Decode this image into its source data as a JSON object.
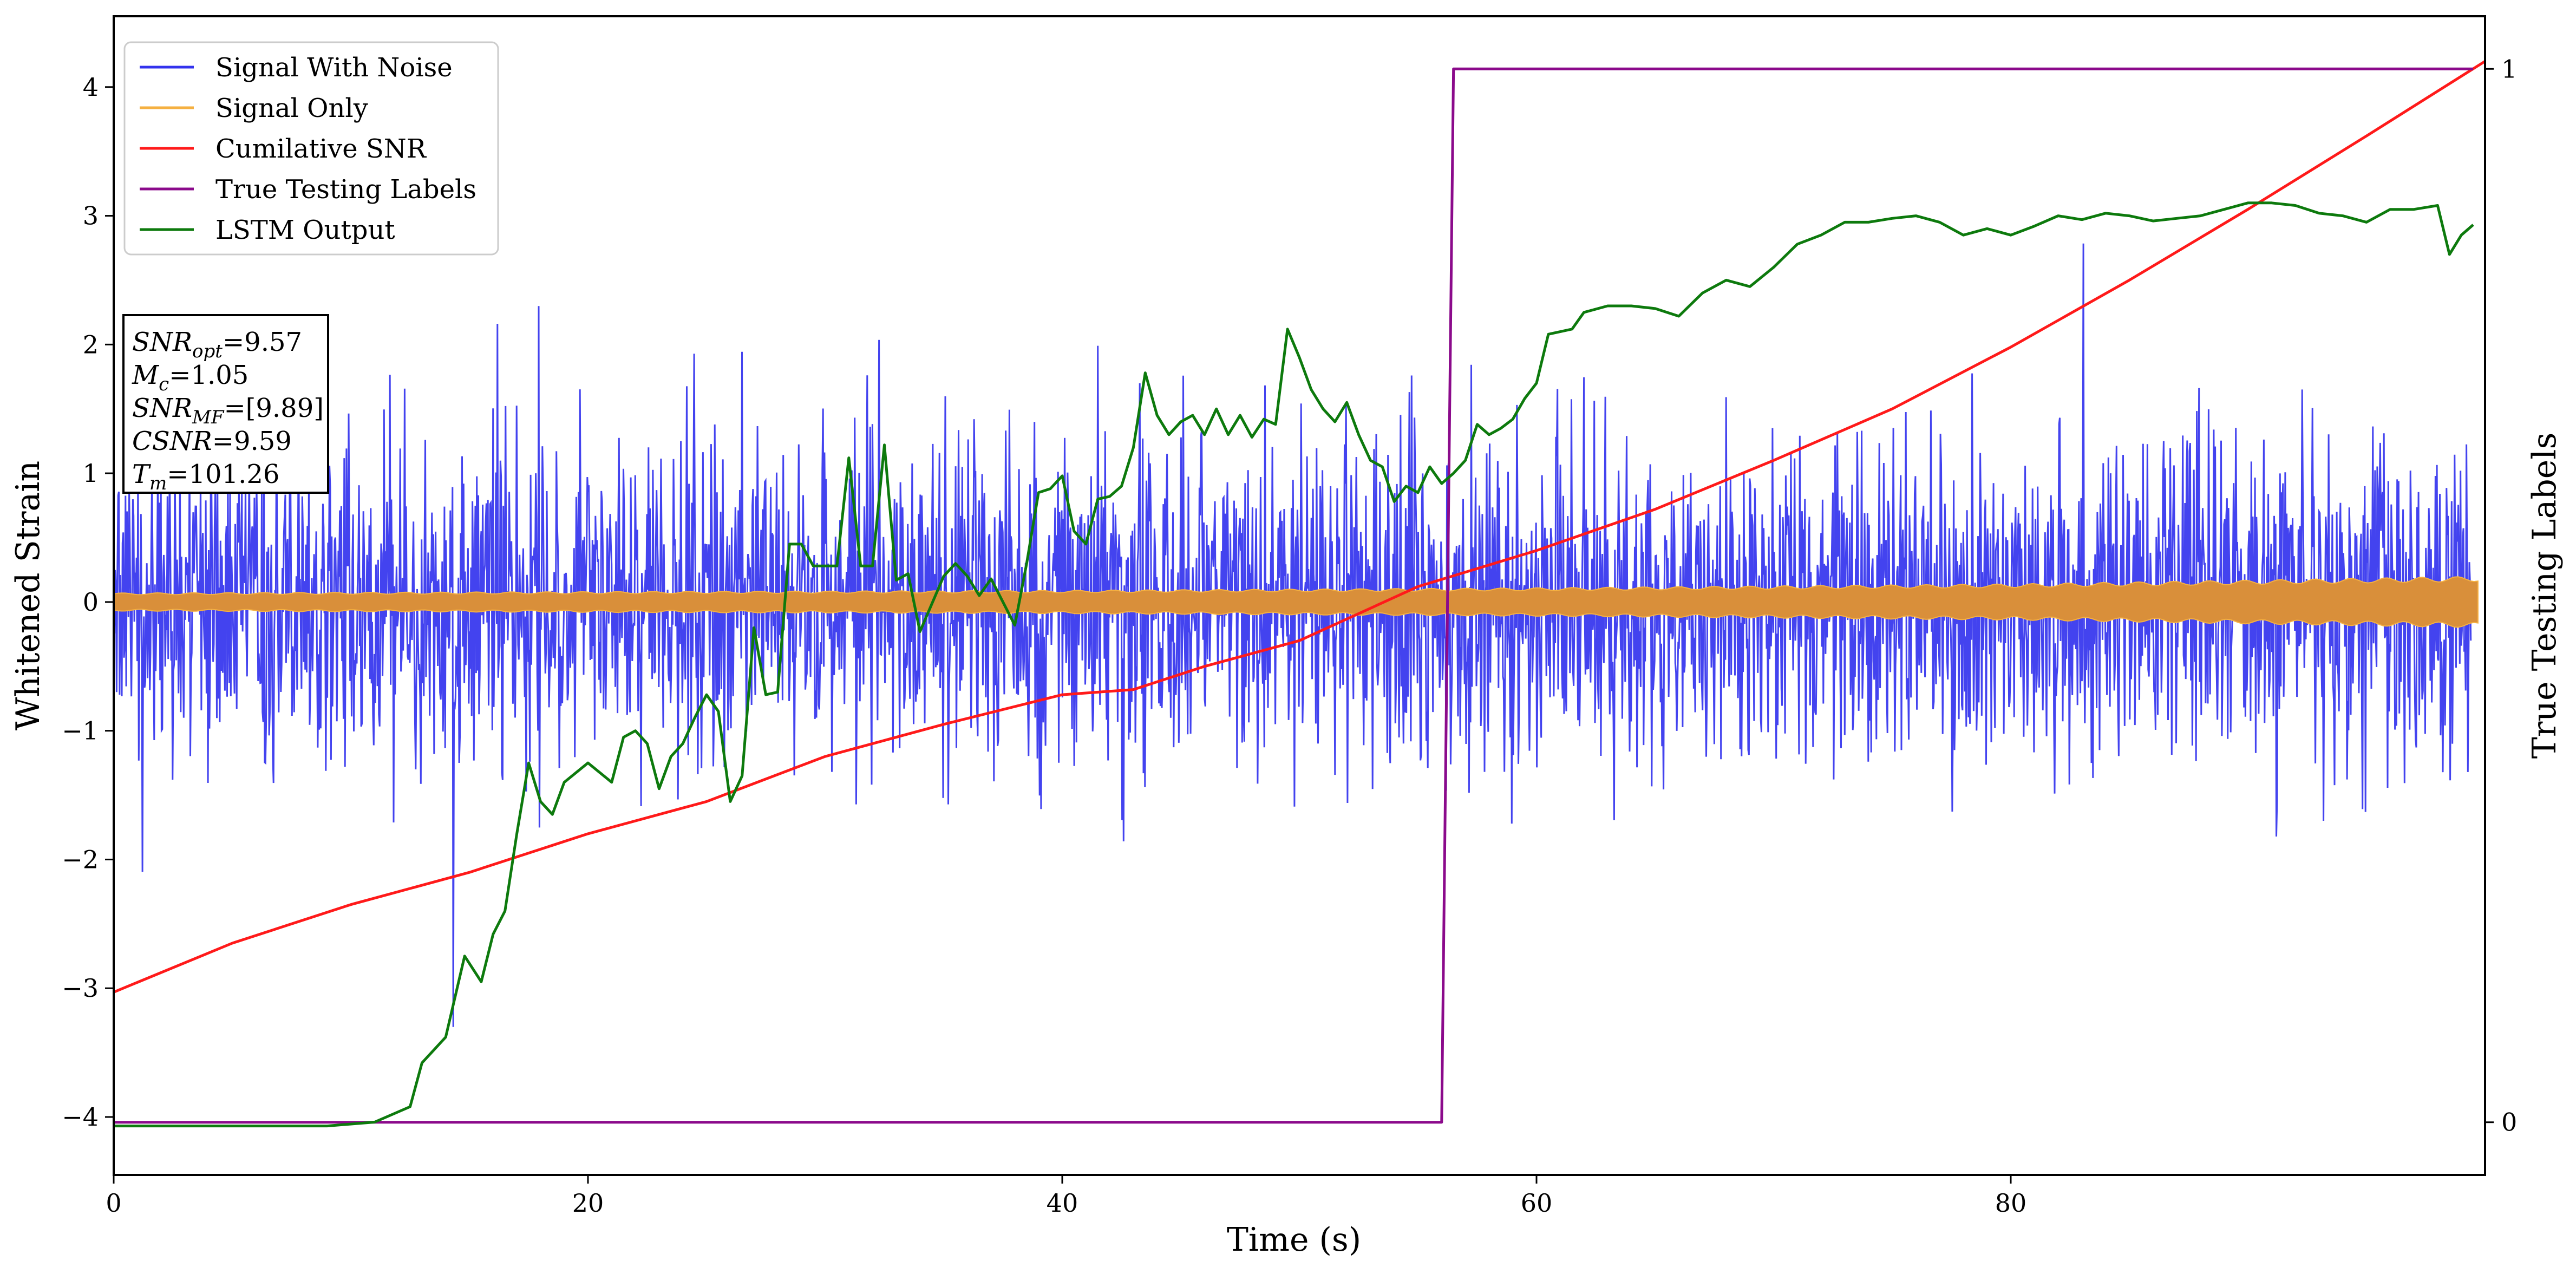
{
  "chart_data": {
    "type": "line",
    "xlabel": "Time (s)",
    "ylabel": "Whitened Strain",
    "ylabel_right": "True Testing Labels",
    "xlim": [
      0,
      100
    ],
    "ylim": [
      -4.45,
      4.55
    ],
    "ylim_right": [
      -0.05,
      1.05
    ],
    "x_ticks": [
      0,
      20,
      40,
      60,
      80
    ],
    "y_ticks": [
      -4,
      -3,
      -2,
      -1,
      0,
      1,
      2,
      3,
      4
    ],
    "y_ticks_right": [
      0,
      1
    ],
    "legend_position": "top-left",
    "series": [
      {
        "name": "Signal With Noise",
        "color": "#3333ee",
        "axis": "left",
        "description_only": true
      },
      {
        "name": "Signal Only",
        "color": "#f5b041",
        "axis": "left",
        "envelope": [
          [
            0,
            0.07
          ],
          [
            20,
            0.08
          ],
          [
            40,
            0.09
          ],
          [
            60,
            0.11
          ],
          [
            80,
            0.14
          ],
          [
            100,
            0.2
          ]
        ]
      },
      {
        "name": "Cumilative SNR",
        "color": "#ff1a1a",
        "axis": "left",
        "points": [
          [
            0,
            -3.03
          ],
          [
            5,
            -2.65
          ],
          [
            10,
            -2.35
          ],
          [
            15,
            -2.1
          ],
          [
            20,
            -1.8
          ],
          [
            25,
            -1.55
          ],
          [
            30,
            -1.2
          ],
          [
            35,
            -0.95
          ],
          [
            40,
            -0.72
          ],
          [
            43,
            -0.68
          ],
          [
            46,
            -0.5
          ],
          [
            50,
            -0.3
          ],
          [
            55,
            0.12
          ],
          [
            60,
            0.4
          ],
          [
            65,
            0.72
          ],
          [
            70,
            1.1
          ],
          [
            75,
            1.5
          ],
          [
            80,
            1.98
          ],
          [
            85,
            2.5
          ],
          [
            90,
            3.05
          ],
          [
            95,
            3.62
          ],
          [
            100,
            4.2
          ]
        ]
      },
      {
        "name": "True Testing Labels",
        "color": "#8b0a8b",
        "axis": "right",
        "points": [
          [
            0,
            0
          ],
          [
            56.0,
            0
          ],
          [
            56.5,
            1
          ],
          [
            99.5,
            1
          ]
        ]
      },
      {
        "name": "LSTM Output",
        "color": "#0d7a0d",
        "axis": "left",
        "points": [
          [
            0,
            -4.07
          ],
          [
            9,
            -4.07
          ],
          [
            11,
            -4.04
          ],
          [
            12.5,
            -3.92
          ],
          [
            13,
            -3.58
          ],
          [
            14,
            -3.38
          ],
          [
            14.8,
            -2.75
          ],
          [
            15.5,
            -2.95
          ],
          [
            16,
            -2.58
          ],
          [
            16.5,
            -2.4
          ],
          [
            17,
            -1.8
          ],
          [
            17.5,
            -1.25
          ],
          [
            18,
            -1.55
          ],
          [
            18.5,
            -1.65
          ],
          [
            19,
            -1.4
          ],
          [
            20,
            -1.25
          ],
          [
            21,
            -1.4
          ],
          [
            21.5,
            -1.05
          ],
          [
            22,
            -1.0
          ],
          [
            22.5,
            -1.1
          ],
          [
            23,
            -1.45
          ],
          [
            23.5,
            -1.2
          ],
          [
            24,
            -1.1
          ],
          [
            24.5,
            -0.9
          ],
          [
            25,
            -0.72
          ],
          [
            25.5,
            -0.85
          ],
          [
            26,
            -1.55
          ],
          [
            26.5,
            -1.35
          ],
          [
            27,
            -0.2
          ],
          [
            27.5,
            -0.72
          ],
          [
            28,
            -0.7
          ],
          [
            28.5,
            0.45
          ],
          [
            29,
            0.45
          ],
          [
            29.5,
            0.28
          ],
          [
            30,
            0.28
          ],
          [
            30.5,
            0.28
          ],
          [
            31,
            1.12
          ],
          [
            31.5,
            0.28
          ],
          [
            32,
            0.28
          ],
          [
            32.5,
            1.22
          ],
          [
            33,
            0.17
          ],
          [
            33.5,
            0.22
          ],
          [
            34,
            -0.23
          ],
          [
            35,
            0.2
          ],
          [
            35.5,
            0.3
          ],
          [
            36,
            0.2
          ],
          [
            36.5,
            0.05
          ],
          [
            37,
            0.18
          ],
          [
            38,
            -0.18
          ],
          [
            38.5,
            0.3
          ],
          [
            39,
            0.85
          ],
          [
            39.5,
            0.88
          ],
          [
            40,
            0.98
          ],
          [
            40.5,
            0.55
          ],
          [
            41,
            0.45
          ],
          [
            41.5,
            0.8
          ],
          [
            42,
            0.82
          ],
          [
            42.5,
            0.9
          ],
          [
            43,
            1.2
          ],
          [
            43.5,
            1.78
          ],
          [
            44,
            1.45
          ],
          [
            44.5,
            1.3
          ],
          [
            45,
            1.4
          ],
          [
            45.5,
            1.45
          ],
          [
            46,
            1.3
          ],
          [
            46.5,
            1.5
          ],
          [
            47,
            1.3
          ],
          [
            47.5,
            1.45
          ],
          [
            48,
            1.28
          ],
          [
            48.5,
            1.42
          ],
          [
            49,
            1.38
          ],
          [
            49.5,
            2.12
          ],
          [
            50,
            1.9
          ],
          [
            50.5,
            1.65
          ],
          [
            51,
            1.5
          ],
          [
            51.5,
            1.4
          ],
          [
            52,
            1.55
          ],
          [
            52.5,
            1.3
          ],
          [
            53,
            1.1
          ],
          [
            53.5,
            1.05
          ],
          [
            54,
            0.78
          ],
          [
            54.5,
            0.9
          ],
          [
            55,
            0.85
          ],
          [
            55.5,
            1.05
          ],
          [
            56,
            0.92
          ],
          [
            56.5,
            1.0
          ],
          [
            57,
            1.1
          ],
          [
            57.5,
            1.38
          ],
          [
            58,
            1.3
          ],
          [
            58.5,
            1.35
          ],
          [
            59,
            1.42
          ],
          [
            59.5,
            1.58
          ],
          [
            60,
            1.7
          ],
          [
            60.5,
            2.08
          ],
          [
            61,
            2.1
          ],
          [
            61.5,
            2.12
          ],
          [
            62,
            2.25
          ],
          [
            63,
            2.3
          ],
          [
            64,
            2.3
          ],
          [
            65,
            2.28
          ],
          [
            66,
            2.22
          ],
          [
            67,
            2.4
          ],
          [
            68,
            2.5
          ],
          [
            69,
            2.45
          ],
          [
            70,
            2.6
          ],
          [
            71,
            2.78
          ],
          [
            72,
            2.85
          ],
          [
            73,
            2.95
          ],
          [
            74,
            2.95
          ],
          [
            75,
            2.98
          ],
          [
            76,
            3.0
          ],
          [
            77,
            2.95
          ],
          [
            78,
            2.85
          ],
          [
            79,
            2.9
          ],
          [
            80,
            2.85
          ],
          [
            81,
            2.92
          ],
          [
            82,
            3.0
          ],
          [
            83,
            2.97
          ],
          [
            84,
            3.02
          ],
          [
            85,
            3.0
          ],
          [
            86,
            2.96
          ],
          [
            87,
            2.98
          ],
          [
            88,
            3.0
          ],
          [
            89,
            3.05
          ],
          [
            90,
            3.1
          ],
          [
            91,
            3.1
          ],
          [
            92,
            3.08
          ],
          [
            93,
            3.02
          ],
          [
            94,
            3.0
          ],
          [
            95,
            2.95
          ],
          [
            96,
            3.05
          ],
          [
            97,
            3.05
          ],
          [
            98,
            3.08
          ],
          [
            98.5,
            2.7
          ],
          [
            99,
            2.85
          ],
          [
            99.5,
            2.93
          ]
        ]
      }
    ],
    "annotation": {
      "lines": [
        {
          "base": "SNR",
          "sub": "opt",
          "value": "=9.57"
        },
        {
          "base": "M",
          "sub": "c",
          "value": "=1.05"
        },
        {
          "base": "SNR",
          "sub": "MF",
          "value": "=[9.89]"
        },
        {
          "base": "CSNR",
          "sub": "",
          "value": "=9.59"
        },
        {
          "base": "T",
          "sub": "m",
          "value": "=101.26"
        }
      ]
    }
  }
}
